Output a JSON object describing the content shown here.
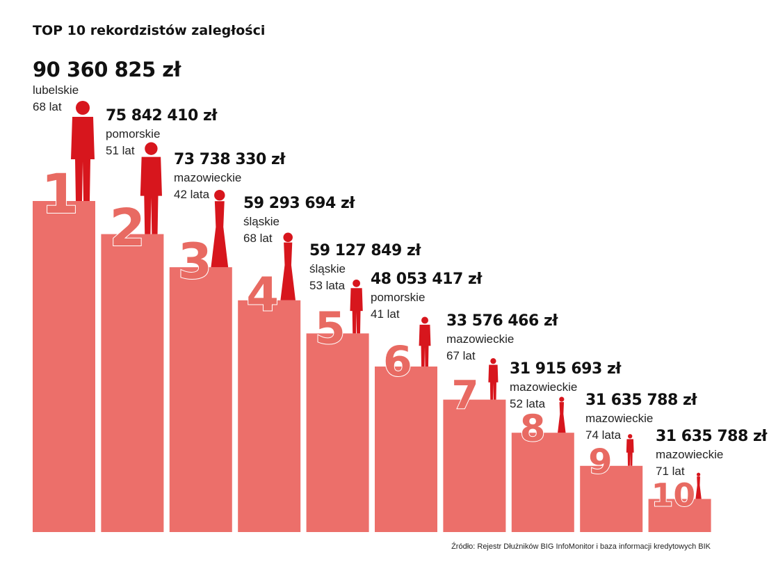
{
  "title": "TOP 10 rekordzistów zaległości",
  "items": [
    {
      "rank": "1",
      "amount": "90 360 825 zł",
      "region": "lubelskie",
      "age": "68 lat"
    },
    {
      "rank": "2",
      "amount": "75 842 410 zł",
      "region": "pomorskie",
      "age": "51 lat"
    },
    {
      "rank": "3",
      "amount": "73 738 330 zł",
      "region": "mazowieckie",
      "age": "42 lata"
    },
    {
      "rank": "4",
      "amount": "59 293 694 zł",
      "region": "śląskie",
      "age": "68 lat"
    },
    {
      "rank": "5",
      "amount": "59 127 849 zł",
      "region": "śląskie",
      "age": "53 lata"
    },
    {
      "rank": "6",
      "amount": "48 053 417 zł",
      "region": "pomorskie",
      "age": "41 lat"
    },
    {
      "rank": "7",
      "amount": "33 576 466 zł",
      "region": "mazowieckie",
      "age": "67 lat"
    },
    {
      "rank": "8",
      "amount": "31 915 693 zł",
      "region": "mazowieckie",
      "age": "52 lata"
    },
    {
      "rank": "9",
      "amount": "31 635 788 zł",
      "region": "mazowieckie",
      "age": "74 lata"
    },
    {
      "rank": "10",
      "amount": "31 635 788 zł",
      "region": "mazowieckie",
      "age": "71 lat"
    }
  ],
  "source": "Źródło: Rejestr Dłużników BIG InfoMonitor i baza informacji kredytowych BIK"
}
